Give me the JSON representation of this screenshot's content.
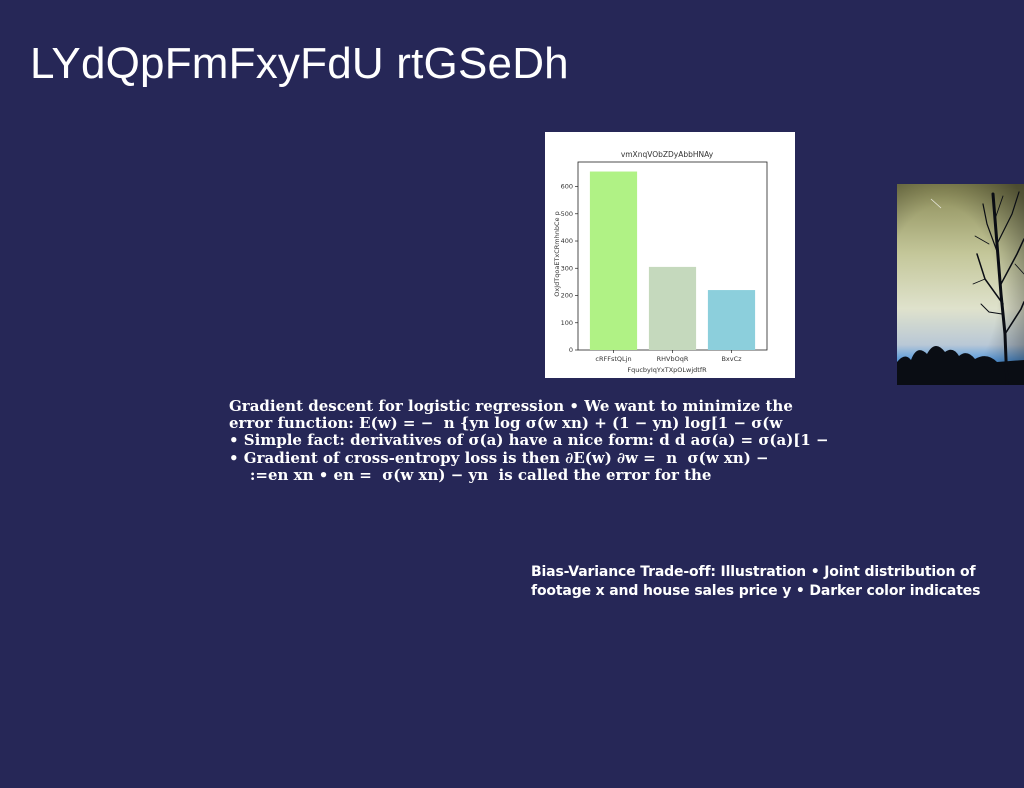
{
  "slide": {
    "title": "LYdQpFmFxyFdU rtGSeDh"
  },
  "chart_data": {
    "type": "bar",
    "title": "vmXnqVObZDyAbbHNAy",
    "xlabel": "FqucbyIqYxTXpOLwjdtfR",
    "ylabel": "OxJdTqoaETxCRmhnbCe p",
    "categories": [
      "cRFFstQLjn",
      "RHVbOqR",
      "BxvCz"
    ],
    "values": [
      655,
      305,
      220
    ],
    "colors": [
      "#b0f285",
      "#c5d9bd",
      "#8ccfdc"
    ],
    "yticks": [
      0,
      100,
      200,
      300,
      400,
      500,
      600
    ],
    "ylim": [
      0,
      690
    ],
    "grid": false
  },
  "text_block_1": {
    "lines": [
      "Gradient descent for logistic regression • We want to minimize the",
      "error function: E(w) = − ￼ n {yn log σ(w ￼xn) + (1 − yn) log[1 − σ(w",
      "• Simple fact: derivatives of σ(a) have a nice form: d d aσ(a) = σ(a)[1 −",
      "• Gradient of cross-entropy loss is then ∂E(w) ∂w = ￼ n ￼ σ(w ￼xn) −",
      "￼ ￼ ￼￼ ￼ :=en xn • en = ￼ σ(w ￼xn) − yn ￼ is called the error for the"
    ]
  },
  "text_block_2": {
    "lines": [
      "Bias-Variance Trade-off: Illustration • Joint distribution of",
      "footage x and house sales price y • Darker color indicates"
    ]
  }
}
